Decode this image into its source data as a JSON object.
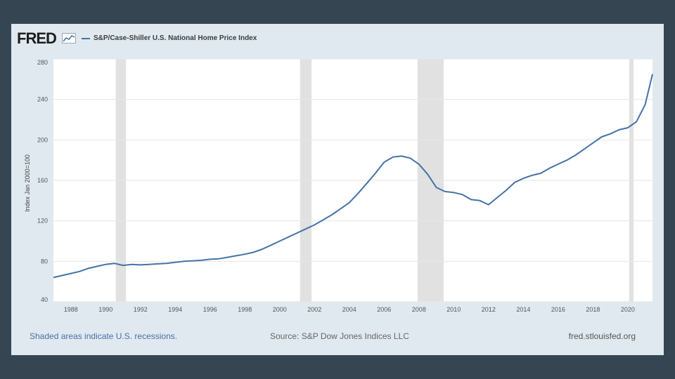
{
  "logo": {
    "text": "FRED",
    "mark_icon": "fred-chart-mark-icon"
  },
  "legend": {
    "series_name": "S&P/Case-Shiller U.S. National Home Price Index",
    "color": "#4572a7"
  },
  "footer": {
    "note": "Shaded areas indicate U.S. recessions.",
    "source": "Source: S&P Dow Jones Indices LLC",
    "site": "fred.stlouisfed.org"
  },
  "chart_data": {
    "type": "line",
    "title": "",
    "xlabel": "",
    "ylabel": "Index Jan 2000=100",
    "xlim": [
      1987.0,
      2021.42
    ],
    "ylim": [
      40,
      280
    ],
    "yticks": [
      40,
      80,
      120,
      160,
      200,
      240,
      280
    ],
    "xticks": [
      "1988",
      "1990",
      "1992",
      "1994",
      "1996",
      "1998",
      "2000",
      "2002",
      "2004",
      "2006",
      "2008",
      "2010",
      "2012",
      "2014",
      "2016",
      "2018",
      "2020"
    ],
    "grid": "horizontal",
    "legend_position": "top-left",
    "recessions": [
      [
        1990.58,
        1991.17
      ],
      [
        2001.17,
        2001.83
      ],
      [
        2007.92,
        2009.42
      ],
      [
        2020.08,
        2020.33
      ]
    ],
    "series": [
      {
        "name": "S&P/Case-Shiller U.S. National Home Price Index",
        "color": "#4572a7",
        "points": [
          [
            1987.0,
            64
          ],
          [
            1987.5,
            66
          ],
          [
            1988.0,
            68
          ],
          [
            1988.5,
            70
          ],
          [
            1989.0,
            73
          ],
          [
            1989.5,
            75
          ],
          [
            1990.0,
            77
          ],
          [
            1990.5,
            78
          ],
          [
            1991.0,
            76
          ],
          [
            1991.5,
            77
          ],
          [
            1992.0,
            76.5
          ],
          [
            1992.5,
            77
          ],
          [
            1993.0,
            77.5
          ],
          [
            1993.5,
            78
          ],
          [
            1994.0,
            79
          ],
          [
            1994.5,
            80
          ],
          [
            1995.0,
            80.5
          ],
          [
            1995.5,
            81
          ],
          [
            1996.0,
            82
          ],
          [
            1996.5,
            82.5
          ],
          [
            1997.0,
            84
          ],
          [
            1997.5,
            85.5
          ],
          [
            1998.0,
            87
          ],
          [
            1998.5,
            89
          ],
          [
            1999.0,
            92
          ],
          [
            1999.5,
            96
          ],
          [
            2000.0,
            100
          ],
          [
            2000.5,
            104
          ],
          [
            2001.0,
            108
          ],
          [
            2001.5,
            112
          ],
          [
            2002.0,
            116
          ],
          [
            2002.5,
            121
          ],
          [
            2003.0,
            126
          ],
          [
            2003.5,
            132
          ],
          [
            2004.0,
            138
          ],
          [
            2004.5,
            147
          ],
          [
            2005.0,
            157
          ],
          [
            2005.5,
            167
          ],
          [
            2006.0,
            178
          ],
          [
            2006.5,
            183
          ],
          [
            2007.0,
            184
          ],
          [
            2007.5,
            182
          ],
          [
            2008.0,
            176
          ],
          [
            2008.5,
            166
          ],
          [
            2009.0,
            153
          ],
          [
            2009.5,
            149
          ],
          [
            2010.0,
            148
          ],
          [
            2010.5,
            146
          ],
          [
            2011.0,
            141
          ],
          [
            2011.5,
            140
          ],
          [
            2012.0,
            136
          ],
          [
            2012.5,
            143
          ],
          [
            2013.0,
            150
          ],
          [
            2013.5,
            158
          ],
          [
            2014.0,
            162
          ],
          [
            2014.5,
            165
          ],
          [
            2015.0,
            167
          ],
          [
            2015.5,
            172
          ],
          [
            2016.0,
            176
          ],
          [
            2016.5,
            180
          ],
          [
            2017.0,
            185
          ],
          [
            2017.5,
            191
          ],
          [
            2018.0,
            197
          ],
          [
            2018.5,
            203
          ],
          [
            2019.0,
            206
          ],
          [
            2019.5,
            210
          ],
          [
            2020.0,
            212
          ],
          [
            2020.5,
            218
          ],
          [
            2021.0,
            235
          ],
          [
            2021.42,
            265
          ]
        ]
      }
    ]
  }
}
